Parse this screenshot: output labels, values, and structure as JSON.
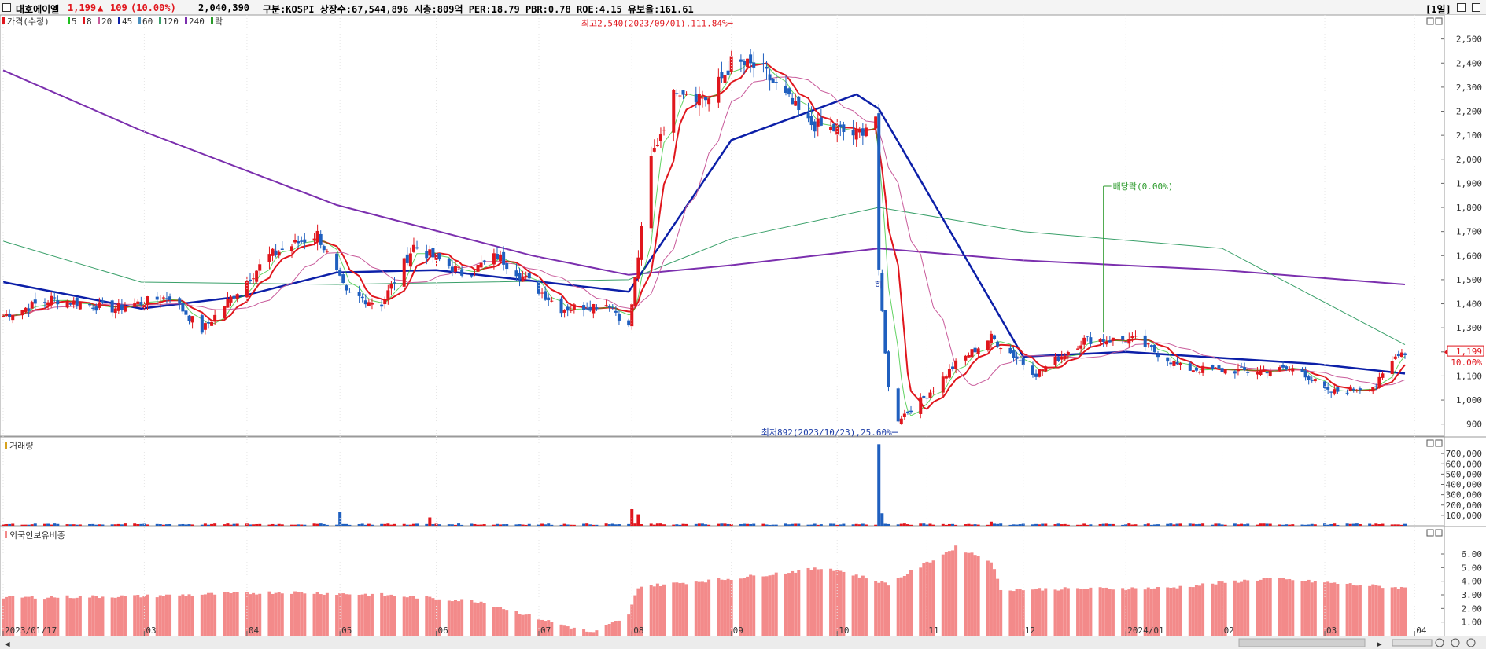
{
  "header": {
    "stock_name": "대호에이엘",
    "price": "1,199",
    "change_arrow": "▲",
    "change": "109",
    "change_pct": "(10.00%)",
    "volume": "2,040,390",
    "info": "구분:KOSPI 상장수:67,544,896 시총:809억 PER:18.79 PBR:0.78 ROE:4.15 유보율:161.61",
    "period_button": "[1일]"
  },
  "legend": {
    "price_label": "가격(수정)",
    "ma": [
      {
        "label": "5",
        "color": "#1fbf1f"
      },
      {
        "label": "8",
        "color": "#e0161d"
      },
      {
        "label": "20",
        "color": "#c85a9a"
      },
      {
        "label": "45",
        "color": "#0c1fa8"
      },
      {
        "label": "60",
        "color": "#4a8fbf"
      },
      {
        "label": "120",
        "color": "#3aa06a"
      },
      {
        "label": "240",
        "color": "#7b2fae"
      }
    ],
    "drop_label": "락"
  },
  "volume_panel": {
    "title": "거래량"
  },
  "foreign_panel": {
    "title": "외국인보유비중"
  },
  "colors": {
    "up": "#e0161d",
    "down": "#1f5fbf",
    "bg": "#ffffff",
    "foreign_bar": "#f38a8a"
  },
  "chart_data": [
    {
      "type": "candlestick",
      "title": "대호에이엘",
      "ylim": [
        850,
        2600
      ],
      "y_ticks": [
        900,
        1000,
        1100,
        1200,
        1300,
        1400,
        1500,
        1600,
        1700,
        1800,
        1900,
        2000,
        2100,
        2200,
        2300,
        2400,
        2500
      ],
      "y_tick_labels": [
        "900",
        "1,000",
        "1,100",
        "1,200",
        "1,300",
        "1,400",
        "1,500",
        "1,600",
        "1,700",
        "1,800",
        "1,900",
        "2,000",
        "2,100",
        "2,200",
        "2,300",
        "2,400",
        "2,500"
      ],
      "x_range": [
        "2023-01-17",
        "2024-03-29"
      ],
      "x_ticks": [
        {
          "date": "2023-01-17",
          "label": "2023/01/17"
        },
        {
          "date": "2023-03-02",
          "label": "03"
        },
        {
          "date": "2023-04-03",
          "label": "04"
        },
        {
          "date": "2023-05-02",
          "label": "05"
        },
        {
          "date": "2023-06-01",
          "label": "06"
        },
        {
          "date": "2023-07-03",
          "label": "07"
        },
        {
          "date": "2023-08-01",
          "label": "08"
        },
        {
          "date": "2023-09-01",
          "label": "09"
        },
        {
          "date": "2023-10-04",
          "label": "10"
        },
        {
          "date": "2023-11-01",
          "label": "11"
        },
        {
          "date": "2023-12-01",
          "label": "12"
        },
        {
          "date": "2024-01-02",
          "label": "2024/01"
        },
        {
          "date": "2024-02-01",
          "label": "02"
        },
        {
          "date": "2024-03-04",
          "label": "03"
        },
        {
          "date": "2024-04-01",
          "label": "04"
        }
      ],
      "ohlc_key_points": [
        {
          "date": "2023-01-17",
          "close": 1350
        },
        {
          "date": "2023-02-01",
          "close": 1420
        },
        {
          "date": "2023-02-20",
          "close": 1380
        },
        {
          "date": "2023-03-10",
          "close": 1430
        },
        {
          "date": "2023-03-20",
          "close": 1290
        },
        {
          "date": "2023-04-10",
          "close": 1600
        },
        {
          "date": "2023-04-25",
          "close": 1690
        },
        {
          "date": "2023-05-04",
          "close": 1440
        },
        {
          "date": "2023-05-15",
          "close": 1400
        },
        {
          "date": "2023-05-25",
          "close": 1640
        },
        {
          "date": "2023-06-10",
          "close": 1520
        },
        {
          "date": "2023-06-20",
          "close": 1600
        },
        {
          "date": "2023-07-10",
          "close": 1380
        },
        {
          "date": "2023-07-25",
          "close": 1400
        },
        {
          "date": "2023-07-31",
          "close": 1300
        },
        {
          "date": "2023-08-07",
          "close": 2000
        },
        {
          "date": "2023-08-15",
          "close": 2300
        },
        {
          "date": "2023-08-25",
          "close": 2250
        },
        {
          "date": "2023-09-01",
          "close": 2400
        },
        {
          "date": "2023-09-10",
          "close": 2380
        },
        {
          "date": "2023-09-25",
          "close": 2150
        },
        {
          "date": "2023-10-10",
          "close": 2100
        },
        {
          "date": "2023-10-16",
          "close": 2180
        },
        {
          "date": "2023-10-17",
          "close": 1520
        },
        {
          "date": "2023-10-20",
          "close": 1050
        },
        {
          "date": "2023-10-23",
          "close": 920
        },
        {
          "date": "2023-11-01",
          "close": 1020
        },
        {
          "date": "2023-11-10",
          "close": 1150
        },
        {
          "date": "2023-11-21",
          "close": 1260
        },
        {
          "date": "2023-12-05",
          "close": 1110
        },
        {
          "date": "2023-12-20",
          "close": 1250
        },
        {
          "date": "2024-01-05",
          "close": 1250
        },
        {
          "date": "2024-01-20",
          "close": 1130
        },
        {
          "date": "2024-02-10",
          "close": 1120
        },
        {
          "date": "2024-02-25",
          "close": 1130
        },
        {
          "date": "2024-03-05",
          "close": 1030
        },
        {
          "date": "2024-03-20",
          "close": 1060
        },
        {
          "date": "2024-03-27",
          "close": 1199
        }
      ],
      "moving_averages": {
        "ma240": [
          {
            "date": "2023-01-17",
            "value": 2370
          },
          {
            "date": "2023-03-01",
            "value": 2120
          },
          {
            "date": "2023-05-01",
            "value": 1810
          },
          {
            "date": "2023-07-01",
            "value": 1600
          },
          {
            "date": "2023-07-31",
            "value": 1520
          },
          {
            "date": "2023-09-01",
            "value": 1560
          },
          {
            "date": "2023-10-17",
            "value": 1630
          },
          {
            "date": "2023-12-01",
            "value": 1580
          },
          {
            "date": "2024-02-01",
            "value": 1540
          },
          {
            "date": "2024-03-29",
            "value": 1480
          }
        ],
        "ma120": [
          {
            "date": "2023-01-17",
            "value": 1660
          },
          {
            "date": "2023-03-01",
            "value": 1490
          },
          {
            "date": "2023-05-01",
            "value": 1480
          },
          {
            "date": "2023-07-31",
            "value": 1500
          },
          {
            "date": "2023-09-01",
            "value": 1670
          },
          {
            "date": "2023-10-17",
            "value": 1800
          },
          {
            "date": "2023-12-01",
            "value": 1700
          },
          {
            "date": "2024-02-01",
            "value": 1630
          },
          {
            "date": "2024-03-29",
            "value": 1230
          }
        ],
        "ma45": [
          {
            "date": "2023-01-17",
            "value": 1490
          },
          {
            "date": "2023-03-01",
            "value": 1380
          },
          {
            "date": "2023-04-01",
            "value": 1430
          },
          {
            "date": "2023-05-01",
            "value": 1530
          },
          {
            "date": "2023-06-01",
            "value": 1540
          },
          {
            "date": "2023-07-31",
            "value": 1450
          },
          {
            "date": "2023-09-01",
            "value": 2080
          },
          {
            "date": "2023-10-10",
            "value": 2270
          },
          {
            "date": "2023-10-17",
            "value": 2210
          },
          {
            "date": "2023-12-01",
            "value": 1180
          },
          {
            "date": "2024-01-02",
            "value": 1200
          },
          {
            "date": "2024-03-01",
            "value": 1150
          },
          {
            "date": "2024-03-29",
            "value": 1110
          }
        ]
      },
      "annotations": [
        {
          "text": "최고2,540(2023/09/01),111.84%",
          "date": "2023-09-01",
          "value": 2540
        },
        {
          "text": "최저892(2023/10/23),25.60%",
          "date": "2023-10-23",
          "value": 892
        },
        {
          "text": "배당락(0.00%)",
          "date": "2023-12-26",
          "value": 1280
        },
        {
          "text": "하",
          "date": "2023-10-17",
          "value": 1520
        }
      ],
      "last_price_label": {
        "price": "1,199",
        "pct": "10.00%",
        "value": 1199
      }
    },
    {
      "type": "bar",
      "title": "거래량",
      "ylim": [
        0,
        800000
      ],
      "y_ticks": [
        100000,
        200000,
        300000,
        400000,
        500000,
        600000,
        700000
      ],
      "y_tick_labels": [
        "100,000",
        "200,000",
        "300,000",
        "400,000",
        "500,000",
        "600,000",
        "700,000"
      ],
      "spikes": [
        {
          "date": "2023-05-02",
          "value": 130000
        },
        {
          "date": "2023-05-30",
          "value": 80000
        },
        {
          "date": "2023-08-01",
          "value": 160000
        },
        {
          "date": "2023-08-03",
          "value": 110000
        },
        {
          "date": "2023-10-17",
          "value": 790000
        },
        {
          "date": "2023-10-18",
          "value": 120000
        },
        {
          "date": "2023-11-21",
          "value": 40000
        }
      ]
    },
    {
      "type": "bar",
      "title": "외국인보유비중",
      "ylim": [
        0,
        7.5
      ],
      "y_ticks": [
        1.0,
        2.0,
        3.0,
        4.0,
        5.0,
        6.0
      ],
      "y_tick_labels": [
        "1.00",
        "2.00",
        "3.00",
        "4.00",
        "5.00",
        "6.00"
      ],
      "key_points": [
        {
          "date": "2023-01-17",
          "value": 2.8
        },
        {
          "date": "2023-03-01",
          "value": 2.9
        },
        {
          "date": "2023-04-15",
          "value": 3.2
        },
        {
          "date": "2023-05-15",
          "value": 3.0
        },
        {
          "date": "2023-06-15",
          "value": 2.5
        },
        {
          "date": "2023-07-10",
          "value": 0.8
        },
        {
          "date": "2023-07-20",
          "value": 0.2
        },
        {
          "date": "2023-07-31",
          "value": 1.5
        },
        {
          "date": "2023-08-03",
          "value": 3.6
        },
        {
          "date": "2023-09-01",
          "value": 4.2
        },
        {
          "date": "2023-10-01",
          "value": 5.0
        },
        {
          "date": "2023-10-20",
          "value": 3.8
        },
        {
          "date": "2023-11-10",
          "value": 6.5
        },
        {
          "date": "2023-11-21",
          "value": 5.5
        },
        {
          "date": "2023-11-24",
          "value": 3.4
        },
        {
          "date": "2024-01-15",
          "value": 3.5
        },
        {
          "date": "2024-02-15",
          "value": 4.2
        },
        {
          "date": "2024-03-29",
          "value": 3.5
        }
      ]
    }
  ]
}
